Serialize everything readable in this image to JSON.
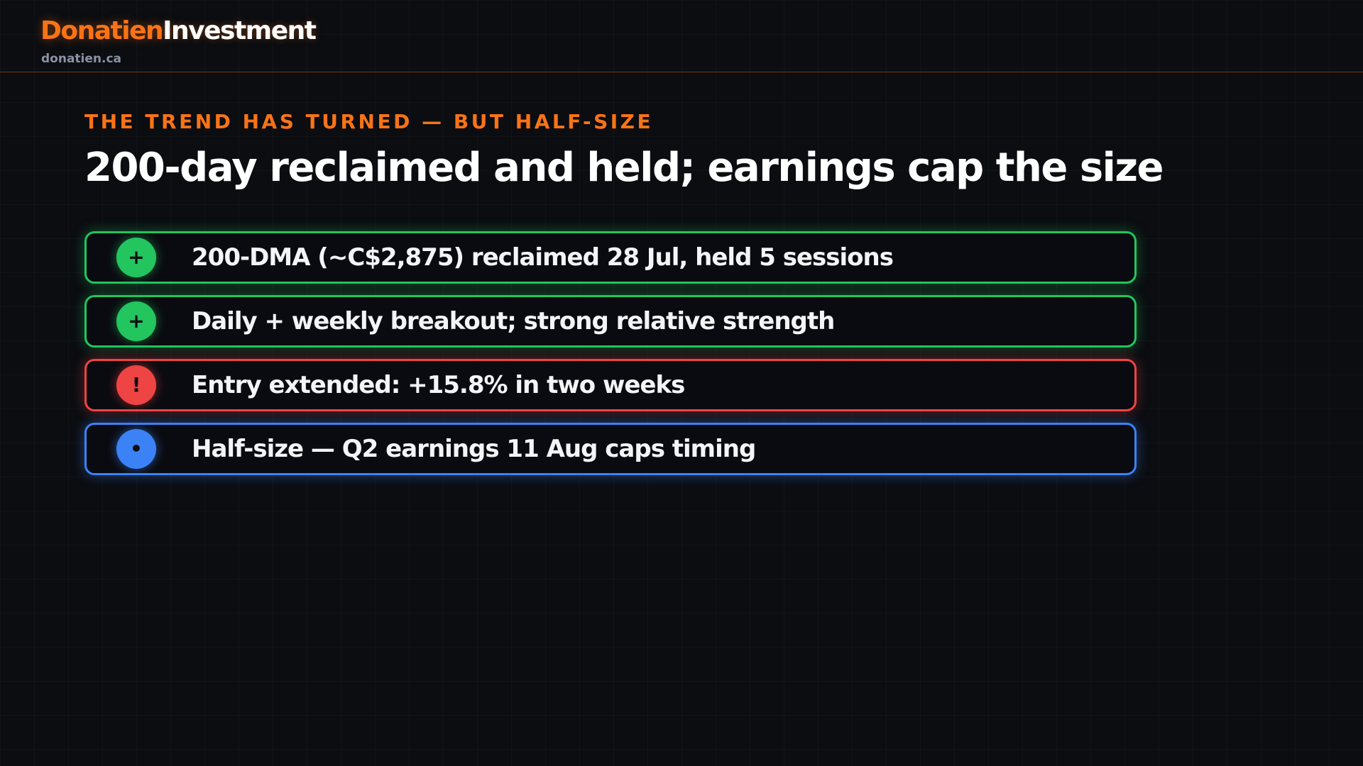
{
  "header": {
    "brand_primary": "Donatien",
    "brand_secondary": "Investment",
    "domain": "donatien.ca"
  },
  "slide": {
    "eyebrow": "THE TREND HAS TURNED — BUT HALF-SIZE",
    "title": "200-day reclaimed and held; earnings cap the size",
    "items": [
      {
        "icon": "+",
        "text": "200-DMA (~C$2,875) reclaimed 28 Jul, held 5 sessions",
        "status": "positive",
        "color": "#22c55e"
      },
      {
        "icon": "+",
        "text": "Daily + weekly breakout; strong relative strength",
        "status": "positive",
        "color": "#22c55e"
      },
      {
        "icon": "!",
        "text": "Entry extended: +15.8% in two weeks",
        "status": "warning",
        "color": "#ef4444"
      },
      {
        "icon": "•",
        "text": "Half-size — Q2 earnings 11 Aug caps timing",
        "status": "info",
        "color": "#3b82f6"
      }
    ]
  }
}
